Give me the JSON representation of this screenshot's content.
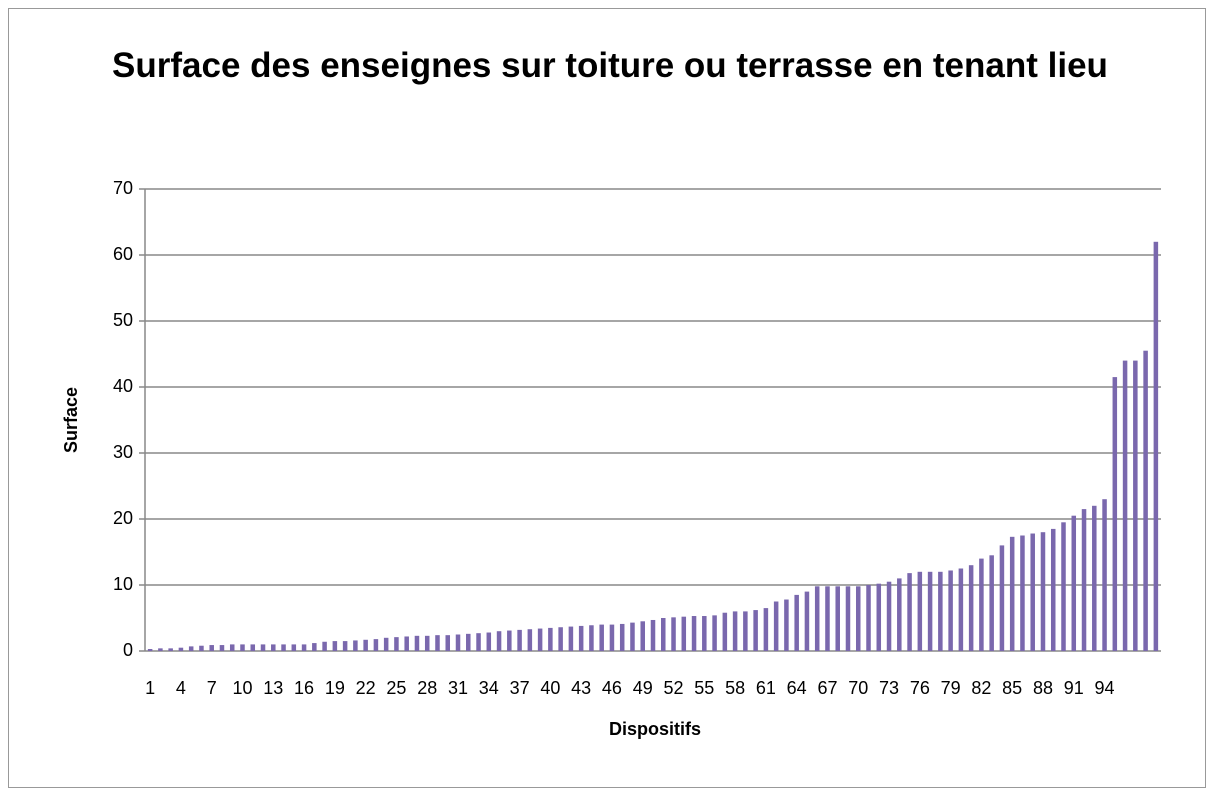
{
  "chart_data": {
    "type": "bar",
    "title": "Surface des enseignes sur toiture ou terrasse en tenant lieu",
    "x_label": "Dispositifs",
    "y_label": "Surface",
    "categories": [
      1,
      null,
      null,
      4,
      null,
      null,
      7,
      null,
      null,
      10,
      null,
      null,
      13,
      null,
      null,
      16,
      null,
      null,
      19,
      null,
      null,
      22,
      null,
      null,
      25,
      null,
      null,
      28,
      null,
      null,
      31,
      null,
      null,
      34,
      null,
      null,
      37,
      null,
      null,
      40,
      null,
      null,
      43,
      null,
      null,
      46,
      null,
      null,
      49,
      null,
      null,
      52,
      null,
      null,
      55,
      null,
      null,
      58,
      null,
      null,
      61,
      null,
      null,
      64,
      null,
      null,
      67,
      null,
      null,
      70,
      null,
      null,
      73,
      null,
      null,
      76,
      null,
      null,
      79,
      null,
      null,
      82,
      null,
      null,
      85,
      null,
      null,
      88,
      null,
      null,
      91,
      null,
      null,
      94,
      null,
      null,
      null,
      null,
      null
    ],
    "values": [
      0.3,
      0.4,
      0.4,
      0.5,
      0.7,
      0.8,
      0.9,
      0.9,
      1.0,
      1.0,
      1.0,
      1.0,
      1.0,
      1.0,
      1.0,
      1.0,
      1.2,
      1.4,
      1.5,
      1.5,
      1.6,
      1.7,
      1.8,
      2.0,
      2.1,
      2.2,
      2.3,
      2.3,
      2.4,
      2.4,
      2.5,
      2.6,
      2.7,
      2.8,
      3.0,
      3.1,
      3.2,
      3.3,
      3.4,
      3.5,
      3.6,
      3.7,
      3.8,
      3.9,
      4.0,
      4.0,
      4.1,
      4.3,
      4.5,
      4.7,
      5.0,
      5.1,
      5.2,
      5.3,
      5.3,
      5.4,
      5.8,
      6.0,
      6.0,
      6.2,
      6.5,
      7.5,
      7.8,
      8.5,
      9.0,
      9.8,
      9.8,
      9.8,
      9.8,
      9.8,
      10.0,
      10.2,
      10.5,
      11.0,
      11.8,
      12.0,
      12.0,
      12.0,
      12.2,
      12.5,
      13.0,
      14.0,
      14.5,
      16.0,
      17.3,
      17.5,
      17.8,
      18.0,
      18.5,
      19.5,
      20.5,
      21.5,
      22.0,
      23.0,
      41.5,
      44.0,
      44.0,
      45.5,
      62.0
    ],
    "color": "#7a68ad",
    "ylim": [
      0,
      70
    ],
    "yticks": [
      0,
      10,
      20,
      30,
      40,
      50,
      60,
      70
    ],
    "grid": true
  }
}
